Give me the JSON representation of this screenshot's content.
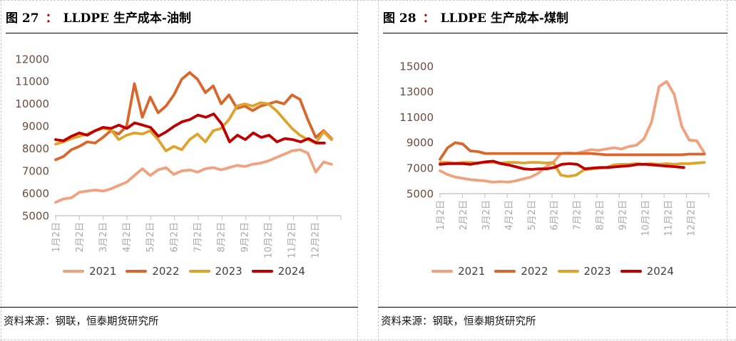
{
  "panels": [
    {
      "fig_no": "图 27",
      "colon": "：",
      "title": "LLDPE 生产成本-油制",
      "source": "资料来源：钢联，恒泰期货研究所"
    },
    {
      "fig_no": "图 28",
      "colon": "：",
      "title": "LLDPE 生产成本-煤制",
      "source": "资料来源：钢联，恒泰期货研究所"
    }
  ],
  "chart_data": [
    {
      "type": "line",
      "title": "LLDPE 生产成本-油制",
      "xlabel": "",
      "ylabel": "",
      "ylim": [
        5000,
        12000
      ],
      "y_ticks": [
        5000,
        6000,
        7000,
        8000,
        9000,
        10000,
        11000,
        12000
      ],
      "x_tick_labels": [
        "1月2日",
        "2月2日",
        "3月2日",
        "4月2日",
        "5月2日",
        "6月2日",
        "7月2日",
        "8月2日",
        "9月2日",
        "10月2日",
        "11月2日",
        "12月2日"
      ],
      "grid": false,
      "legend_position": "bottom",
      "x_unit_note": "months since Jan 2 (0 = 1月2日)",
      "series": [
        {
          "name": "2021",
          "color": "#f1a17d",
          "x_start": 0,
          "x_end": 11.7,
          "values": [
            5600,
            5750,
            5800,
            6050,
            6100,
            6150,
            6100,
            6200,
            6350,
            6500,
            6800,
            7100,
            6800,
            7050,
            7150,
            6850,
            7000,
            7050,
            6950,
            7100,
            7150,
            7050,
            7150,
            7250,
            7200,
            7300,
            7350,
            7450,
            7600,
            7750,
            7900,
            7950,
            7800,
            6950,
            7400,
            7300
          ]
        },
        {
          "name": "2022",
          "color": "#d9662b",
          "x_start": 0,
          "x_end": 11.7,
          "values": [
            7500,
            7650,
            7950,
            8100,
            8300,
            8250,
            8500,
            8800,
            8650,
            9000,
            10900,
            9400,
            10300,
            9600,
            9900,
            10400,
            11100,
            11400,
            11100,
            10500,
            10800,
            10000,
            10400,
            9800,
            9900,
            9700,
            9900,
            10000,
            10100,
            10000,
            10400,
            10200,
            9300,
            8500,
            8800,
            8450
          ]
        },
        {
          "name": "2023",
          "color": "#dfa32c",
          "x_start": 0,
          "x_end": 11.7,
          "values": [
            8200,
            8300,
            8450,
            8550,
            8650,
            8800,
            8900,
            8850,
            8400,
            8600,
            8700,
            8650,
            8800,
            8400,
            7900,
            8100,
            7950,
            8400,
            8650,
            8300,
            8800,
            8900,
            9300,
            9900,
            10000,
            9900,
            10050,
            10000,
            9700,
            9300,
            8900,
            8600,
            8400,
            8250,
            8750,
            8400
          ]
        },
        {
          "name": "2024",
          "color": "#c00000",
          "x_start": 0,
          "x_end": 11.4,
          "values": [
            8400,
            8350,
            8550,
            8700,
            8600,
            8800,
            8950,
            8900,
            9050,
            8900,
            9150,
            9050,
            8950,
            8550,
            8750,
            9000,
            9200,
            9300,
            9500,
            9400,
            9550,
            9100,
            8300,
            8600,
            8400,
            8700,
            8500,
            8600,
            8300,
            8450,
            8400,
            8300,
            8450,
            8250,
            8250
          ]
        }
      ]
    },
    {
      "type": "line",
      "title": "LLDPE 生产成本-煤制",
      "xlabel": "",
      "ylabel": "",
      "ylim": [
        5000,
        15000
      ],
      "y_ticks": [
        5000,
        7000,
        9000,
        11000,
        13000,
        15000
      ],
      "x_tick_labels": [
        "1月2日",
        "2月2日",
        "3月2日",
        "4月2日",
        "5月2日",
        "6月2日",
        "7月2日",
        "8月2日",
        "9月2日",
        "10月2日",
        "11月2日",
        "12月2日"
      ],
      "grid": false,
      "legend_position": "bottom",
      "x_unit_note": "months since Jan 2 (0 = 1月2日)",
      "series": [
        {
          "name": "2021",
          "color": "#f1a17d",
          "x_start": 0,
          "x_end": 11.6,
          "values": [
            6800,
            6500,
            6300,
            6200,
            6100,
            6050,
            6000,
            5900,
            5950,
            5900,
            6000,
            6150,
            6300,
            6600,
            7100,
            7450,
            8150,
            8200,
            8150,
            8300,
            8450,
            8400,
            8500,
            8600,
            8500,
            8700,
            8800,
            9300,
            10600,
            13400,
            13800,
            12800,
            10300,
            9200,
            9150,
            8200
          ]
        },
        {
          "name": "2022",
          "color": "#d9662b",
          "x_start": 0,
          "x_end": 11.6,
          "values": [
            7700,
            8600,
            9000,
            8900,
            8350,
            8300,
            8150,
            8150,
            8150,
            8150,
            8150,
            8150,
            8150,
            8150,
            8150,
            8150,
            8150,
            8150,
            8150,
            8150,
            8150,
            8100,
            8050,
            8050,
            8050,
            8050,
            8050,
            8050,
            8050,
            8050,
            8050,
            8050,
            8050,
            8100,
            8100,
            8100
          ]
        },
        {
          "name": "2023",
          "color": "#dfa32c",
          "x_start": 0,
          "x_end": 11.6,
          "values": [
            7450,
            7450,
            7400,
            7450,
            7450,
            7400,
            7450,
            7450,
            7400,
            7450,
            7450,
            7400,
            7450,
            7450,
            7400,
            7450,
            6450,
            6350,
            6450,
            6850,
            6950,
            7000,
            7050,
            7250,
            7300,
            7300,
            7350,
            7300,
            7350,
            7300,
            7350,
            7300,
            7350,
            7350,
            7400,
            7450
          ]
        },
        {
          "name": "2024",
          "color": "#c00000",
          "x_start": 0,
          "x_end": 10.7,
          "values": [
            7300,
            7350,
            7350,
            7350,
            7300,
            7400,
            7500,
            7550,
            7350,
            7250,
            7100,
            6950,
            6900,
            6950,
            6950,
            7050,
            7300,
            7350,
            7300,
            6950,
            7000,
            7050,
            7050,
            7100,
            7150,
            7200,
            7300,
            7300,
            7250,
            7200,
            7150,
            7100,
            7050
          ]
        }
      ]
    }
  ]
}
